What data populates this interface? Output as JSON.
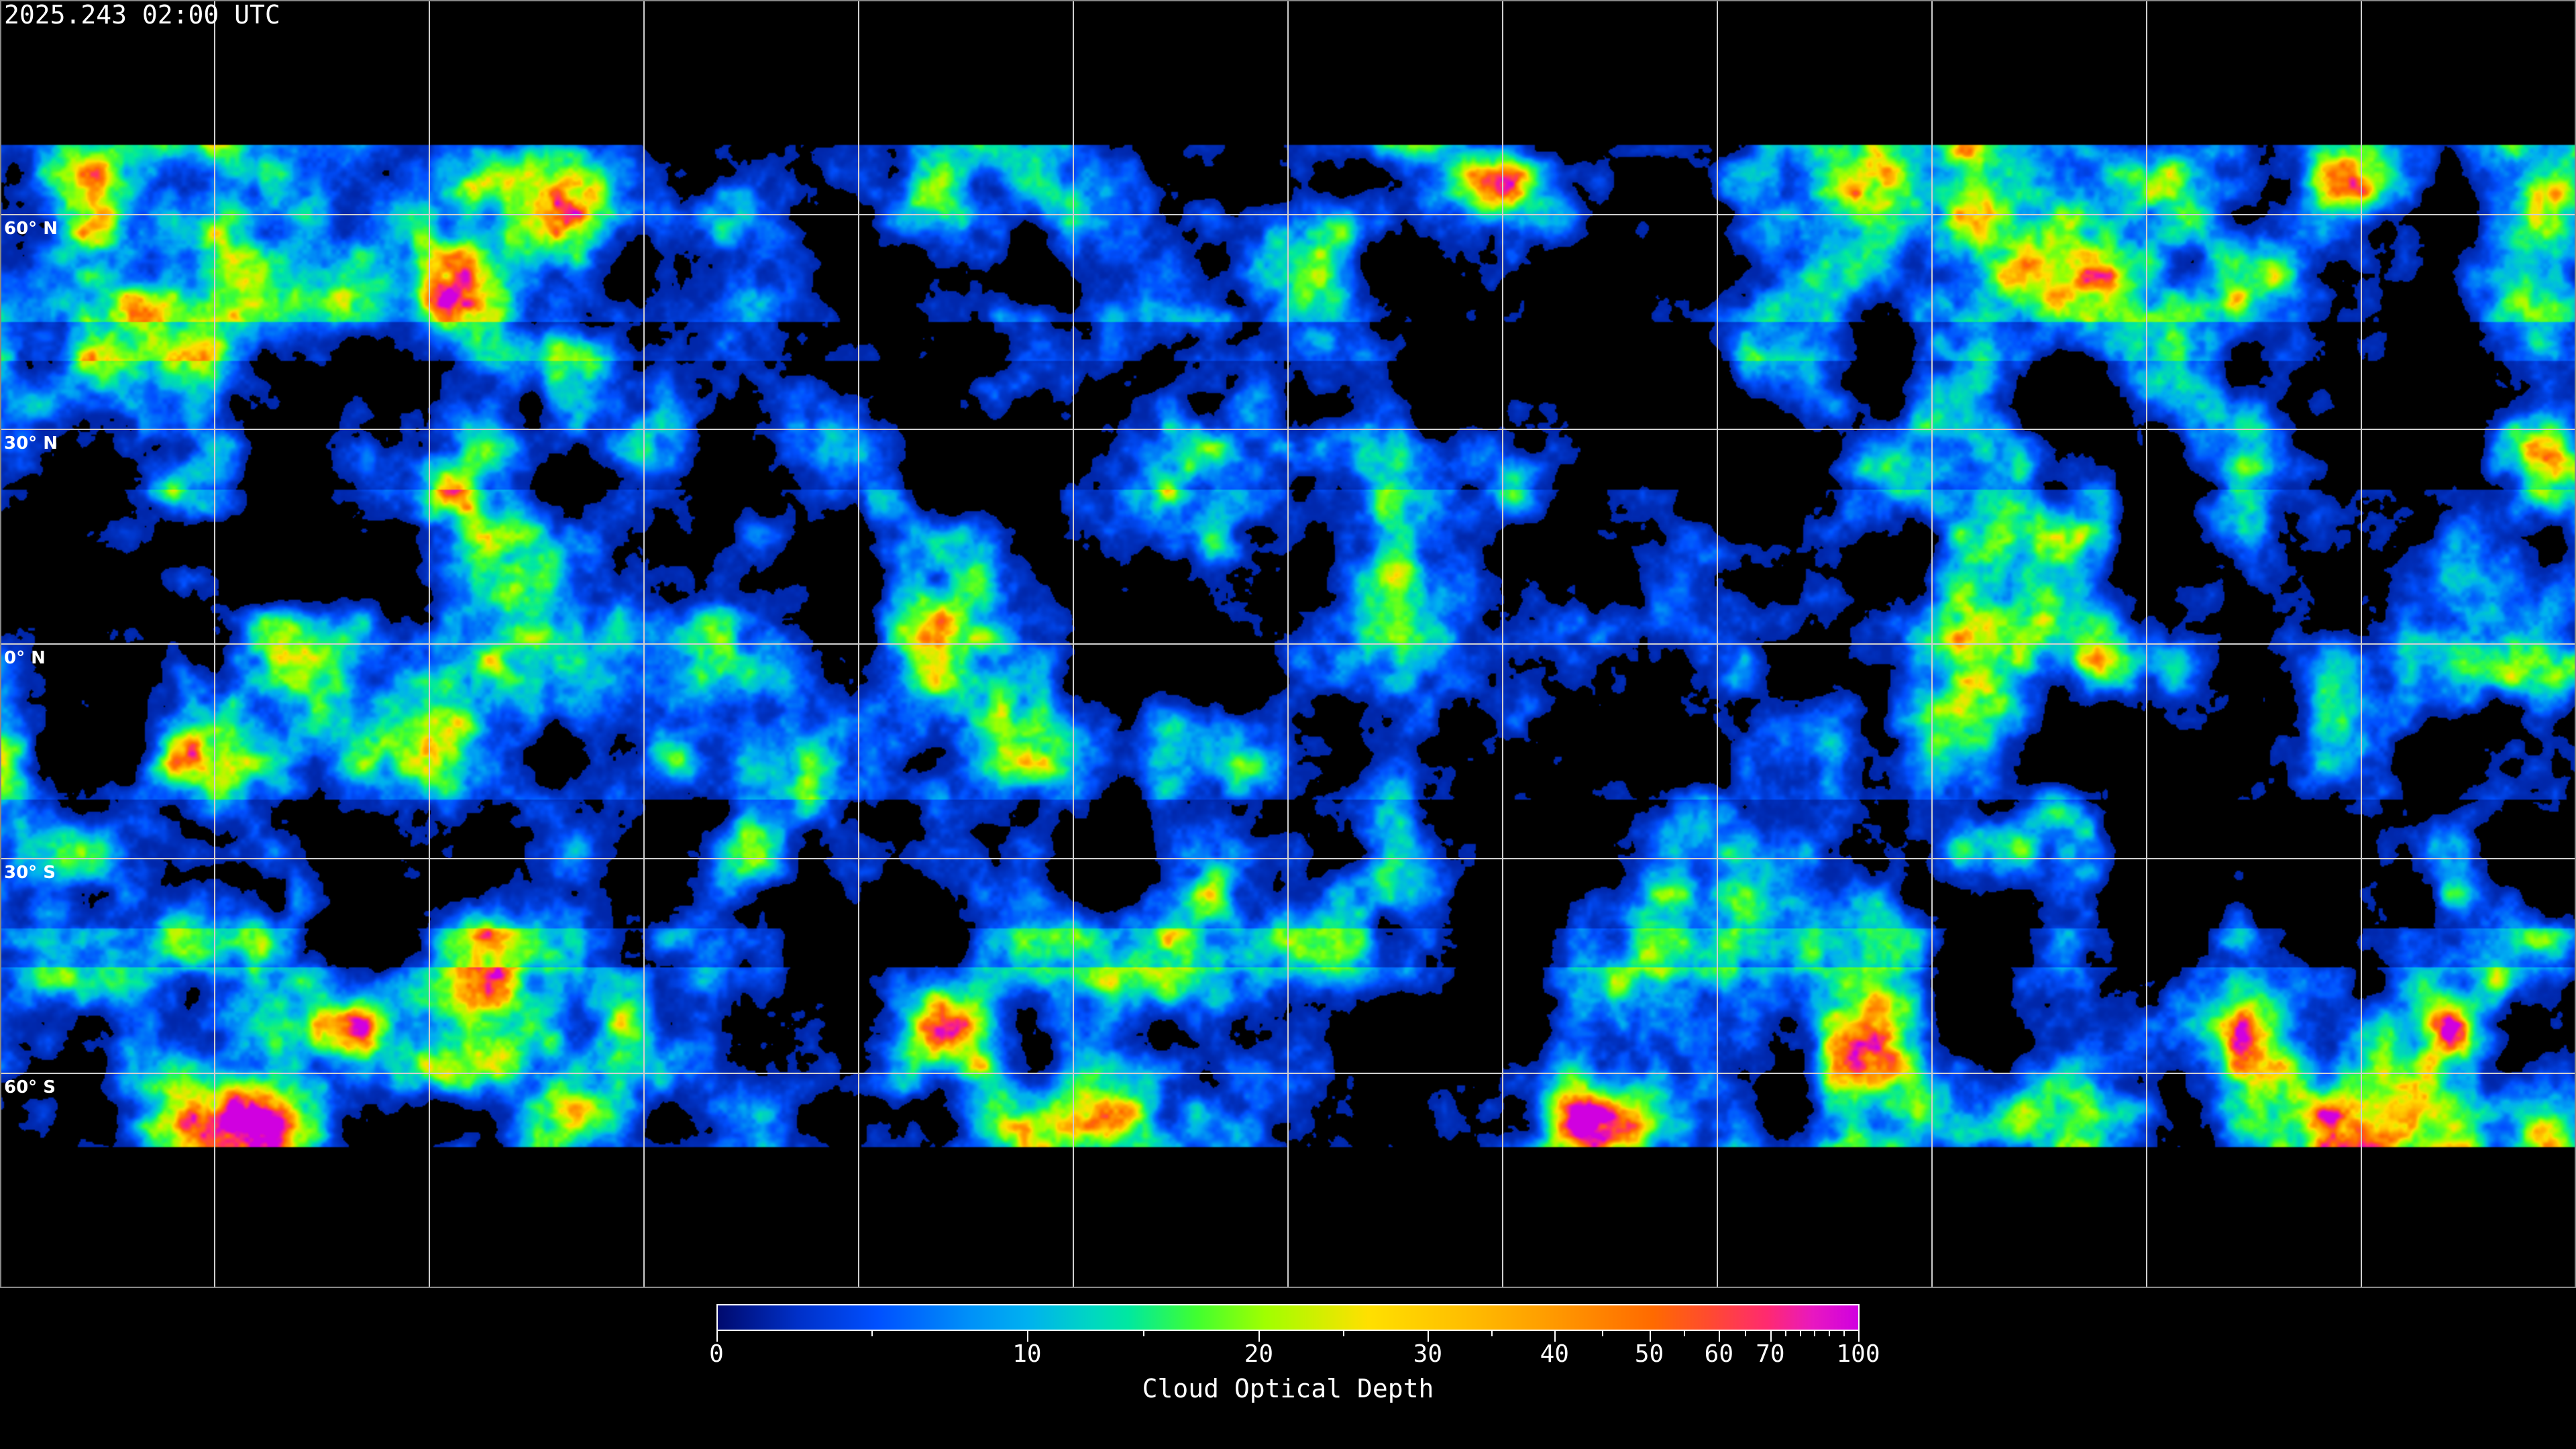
{
  "header": {
    "timestamp": "2025.243 02:00 UTC"
  },
  "map": {
    "projection": "equirectangular",
    "graticule_spacing_deg": 30,
    "latitude_labels": [
      "60° N",
      "30° N",
      "0° N",
      "30° S",
      "60° S"
    ],
    "gridline_color": "#ffffff",
    "coastline_color": "#ffffff",
    "no_data_color": "#000000"
  },
  "colorbar": {
    "title": "Cloud Optical Depth",
    "min": 0,
    "max": 100,
    "tick_labels": [
      "0",
      "10",
      "20",
      "30",
      "40",
      "50",
      "60",
      "70",
      "100"
    ],
    "minor_ticks": [
      5,
      15,
      25,
      35,
      45,
      55,
      65,
      75,
      80,
      85,
      90,
      95
    ],
    "colormap": [
      "#000a6e",
      "#0050ff",
      "#00b0f0",
      "#00e8a0",
      "#40ff30",
      "#a0ff00",
      "#ffe000",
      "#ffa000",
      "#ff6a00",
      "#ff2a70",
      "#d000e0"
    ]
  }
}
